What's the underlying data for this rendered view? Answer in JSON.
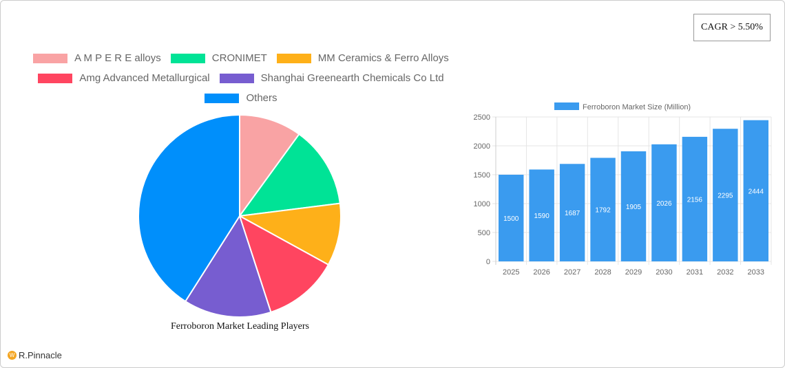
{
  "cagr_label": "CAGR > 5.50%",
  "logo": "R.Pinnacle",
  "chart_data": [
    {
      "type": "pie",
      "title": "Ferroboron Market Leading Players",
      "series": [
        {
          "name": "A M P E R E  alloys",
          "value": 10,
          "color": "#f9a3a4"
        },
        {
          "name": "CRONIMET",
          "value": 13,
          "color": "#00e396"
        },
        {
          "name": "MM Ceramics & Ferro Alloys",
          "value": 10,
          "color": "#feb019"
        },
        {
          "name": "Amg Advanced Metallurgical",
          "value": 12,
          "color": "#ff4560"
        },
        {
          "name": "Shanghai Greenearth Chemicals Co Ltd",
          "value": 14,
          "color": "#775dd0"
        },
        {
          "name": "Others",
          "value": 41,
          "color": "#008ffb"
        }
      ],
      "legend": "top"
    },
    {
      "type": "bar",
      "legend_label": "Ferroboron Market Size (Million)",
      "color": "#3a9bef",
      "categories": [
        "2025",
        "2026",
        "2027",
        "2028",
        "2029",
        "2030",
        "2031",
        "2032",
        "2033"
      ],
      "values": [
        1500,
        1590,
        1687,
        1792,
        1905,
        2026,
        2156,
        2295,
        2444
      ],
      "ylim": [
        0,
        2500
      ],
      "yticks": [
        "0",
        "500",
        "1000",
        "1500",
        "2000",
        "2500"
      ],
      "grid": true,
      "data_labels": true
    }
  ]
}
